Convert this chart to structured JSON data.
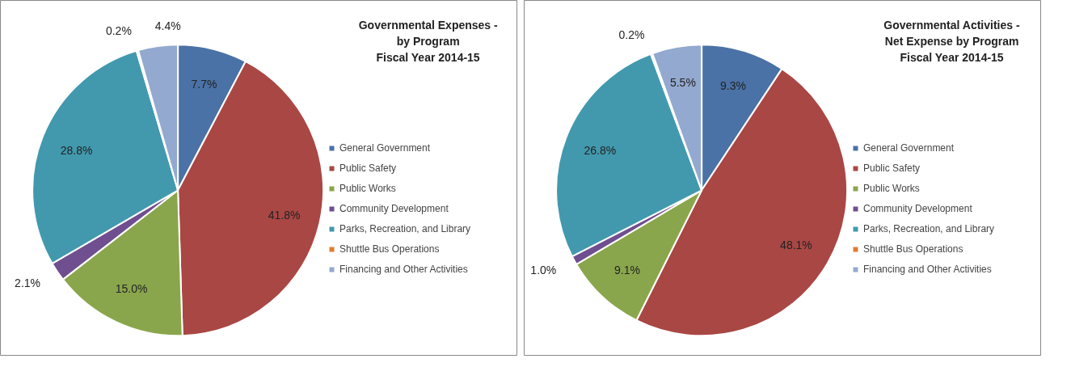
{
  "chart_data": [
    {
      "type": "pie",
      "title": "Governmental Expenses -\nby Program\nFiscal Year 2014-15",
      "categories": [
        "General Government",
        "Public Safety",
        "Public Works",
        "Community Development",
        "Parks, Recreation, and Library",
        "Shuttle Bus Operations",
        "Financing and Other Activities"
      ],
      "values": [
        7.7,
        41.8,
        15.0,
        2.1,
        28.8,
        0.2,
        4.4
      ],
      "value_labels": [
        "7.7%",
        "41.8%",
        "15.0%",
        "2.1%",
        "28.8%",
        "0.2%",
        "4.4%"
      ],
      "colors": [
        "#4a72a6",
        "#a94744",
        "#8aa64c",
        "#6f4f8f",
        "#4299ae",
        "#e07b2f",
        "#93a9cf"
      ],
      "legend": "right"
    },
    {
      "type": "pie",
      "title": "Governmental Activities -\nNet Expense by Program\nFiscal Year 2014-15",
      "categories": [
        "General Government",
        "Public Safety",
        "Public Works",
        "Community Development",
        "Parks, Recreation, and Library",
        "Shuttle Bus Operations",
        "Financing and Other Activities"
      ],
      "values": [
        9.3,
        48.1,
        9.1,
        1.0,
        26.8,
        0.2,
        5.5
      ],
      "value_labels": [
        "9.3%",
        "48.1%",
        "9.1%",
        "1.0%",
        "26.8%",
        "0.2%",
        "5.5%"
      ],
      "colors": [
        "#4a72a6",
        "#a94744",
        "#8aa64c",
        "#6f4f8f",
        "#4299ae",
        "#e07b2f",
        "#93a9cf"
      ],
      "legend": "right"
    }
  ]
}
